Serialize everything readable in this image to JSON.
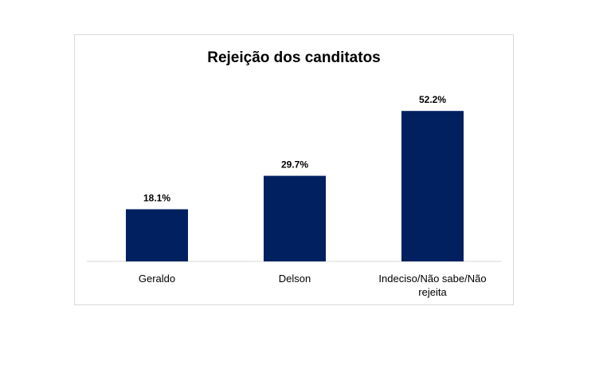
{
  "chart_data": {
    "type": "bar",
    "title": "Rejeição dos canditatos",
    "categories": [
      "Geraldo",
      "Delson",
      "Indeciso/Não sabe/Não rejeita"
    ],
    "category_lines": [
      [
        "Geraldo"
      ],
      [
        "Delson"
      ],
      [
        "Indeciso/Não sabe/Não",
        "rejeita"
      ]
    ],
    "values": [
      18.1,
      29.7,
      52.2
    ],
    "value_labels": [
      "18.1%",
      "29.7%",
      "52.2%"
    ],
    "xlabel": "",
    "ylabel": "",
    "ylim": [
      0,
      60
    ],
    "grid": false,
    "legend": "none",
    "bar_color": "#002060"
  }
}
